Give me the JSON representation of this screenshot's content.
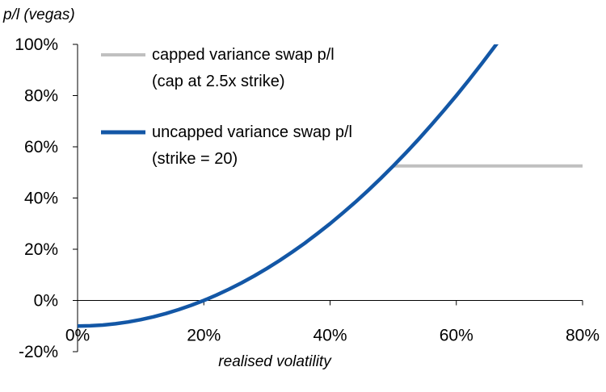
{
  "chart_data": {
    "type": "line",
    "ylabel": "p/l (vegas)",
    "xlabel": "realised volatility",
    "xlim": [
      0,
      80
    ],
    "ylim": [
      -20,
      100
    ],
    "x_ticks": [
      "0%",
      "20%",
      "40%",
      "60%",
      "80%"
    ],
    "y_ticks": [
      "-20%",
      "0%",
      "20%",
      "40%",
      "60%",
      "80%",
      "100%"
    ],
    "grid": false,
    "legend_position": "top-left",
    "series": [
      {
        "name": "capped variance swap p/l",
        "name_line2": "(cap at 2.5x  strike)",
        "color": "#c0c0c0",
        "x": [
          50,
          80
        ],
        "y": [
          52.5,
          52.5
        ]
      },
      {
        "name": "uncapped variance swap p/l",
        "name_line2": "(strike = 20)",
        "color": "#1357a6",
        "x": [
          0,
          2,
          4,
          6,
          8,
          10,
          12,
          14,
          16,
          18,
          20,
          22,
          24,
          26,
          28,
          30,
          32,
          34,
          36,
          38,
          40,
          42,
          44,
          46,
          48,
          50,
          52,
          54,
          56,
          58,
          60,
          62,
          64,
          66,
          67
        ],
        "y": [
          -10,
          -9.9,
          -9.6,
          -9.1,
          -8.4,
          -7.5,
          -6.4,
          -5.1,
          -3.6,
          -1.9,
          0,
          2.1,
          4.4,
          6.9,
          9.6,
          12.5,
          15.6,
          18.9,
          22.4,
          26.1,
          30,
          34.1,
          38.4,
          42.9,
          47.6,
          52.5,
          57.6,
          62.9,
          68.4,
          74.1,
          80,
          86.1,
          92.4,
          98.9,
          102.2
        ]
      }
    ]
  }
}
